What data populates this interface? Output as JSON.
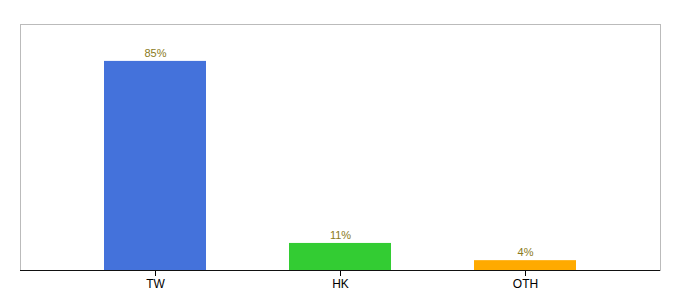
{
  "chart_data": {
    "type": "bar",
    "categories": [
      "TW",
      "HK",
      "OTH"
    ],
    "values": [
      85,
      11,
      4
    ],
    "value_labels": [
      "85%",
      "11%",
      "4%"
    ],
    "colors": [
      "#4472db",
      "#33cc33",
      "#ffaa00"
    ],
    "ylim": [
      0,
      100
    ],
    "grid": false,
    "data_labels": true,
    "tick_labels": "x"
  }
}
